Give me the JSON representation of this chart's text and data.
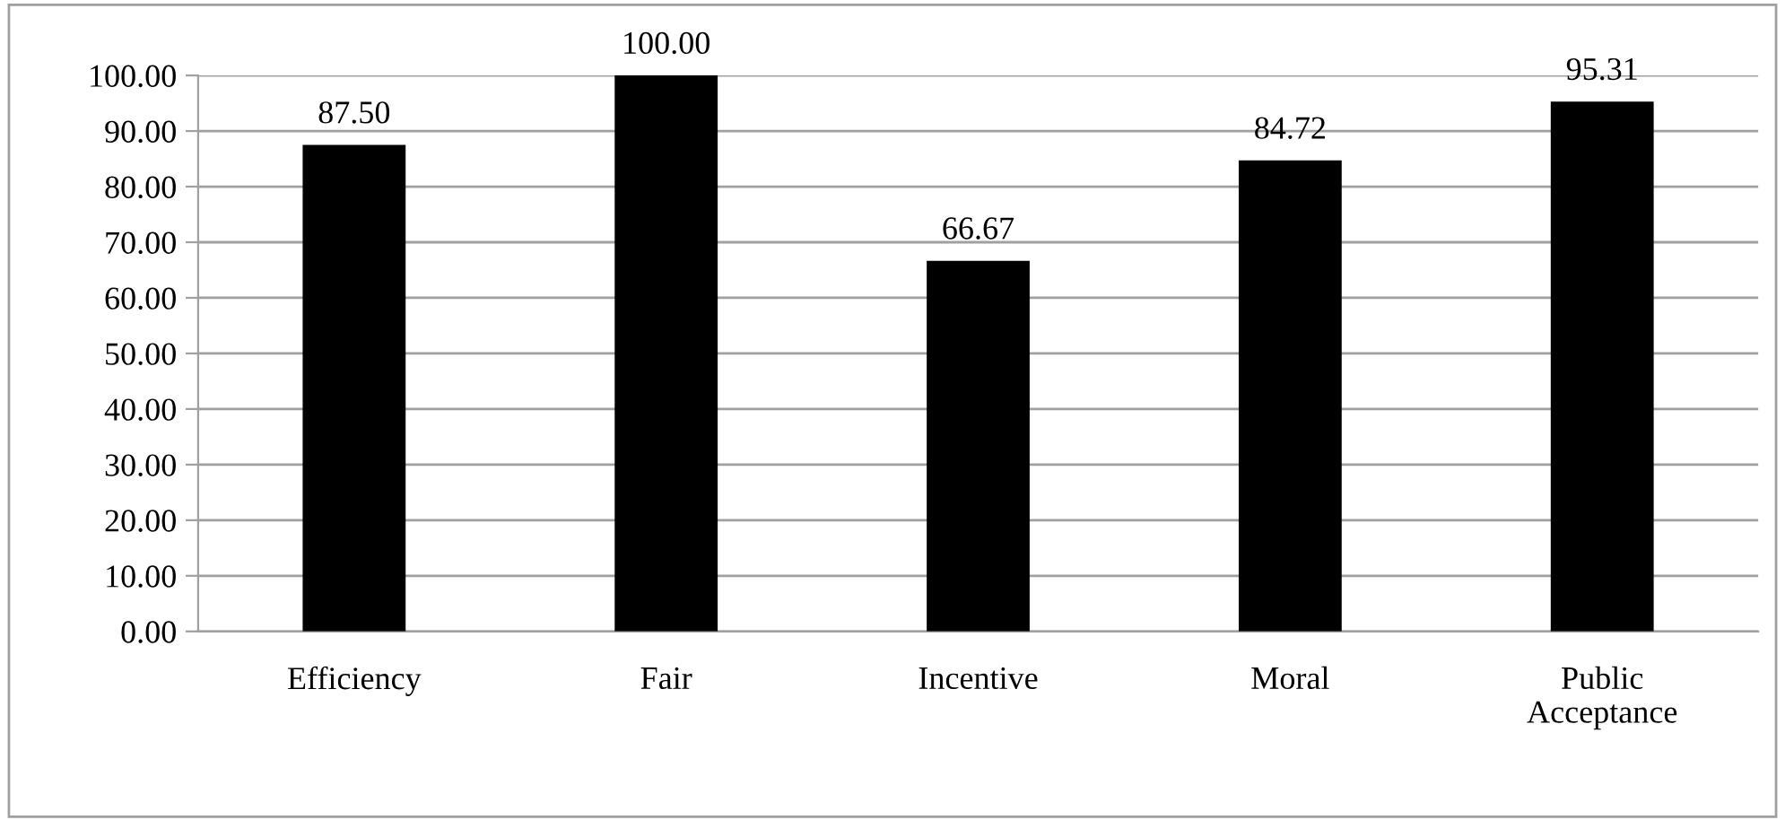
{
  "chart_data": {
    "type": "bar",
    "categories": [
      "Efficiency",
      "Fair",
      "Incentive",
      "Moral",
      "Public Acceptance"
    ],
    "values": [
      87.5,
      100.0,
      66.67,
      84.72,
      95.31
    ],
    "value_labels": [
      "87.50",
      "100.00",
      "66.67",
      "84.72",
      "95.31"
    ],
    "color": "#000000",
    "ylim": [
      0,
      100
    ],
    "yticks": [
      {
        "value": 0,
        "label": "0.00"
      },
      {
        "value": 10,
        "label": "10.00"
      },
      {
        "value": 20,
        "label": "20.00"
      },
      {
        "value": 30,
        "label": "30.00"
      },
      {
        "value": 40,
        "label": "40.00"
      },
      {
        "value": 50,
        "label": "50.00"
      },
      {
        "value": 60,
        "label": "60.00"
      },
      {
        "value": 70,
        "label": "70.00"
      },
      {
        "value": 80,
        "label": "80.00"
      },
      {
        "value": 90,
        "label": "90.00"
      },
      {
        "value": 100,
        "label": "100.00"
      }
    ],
    "grid": "y",
    "legend": false
  }
}
